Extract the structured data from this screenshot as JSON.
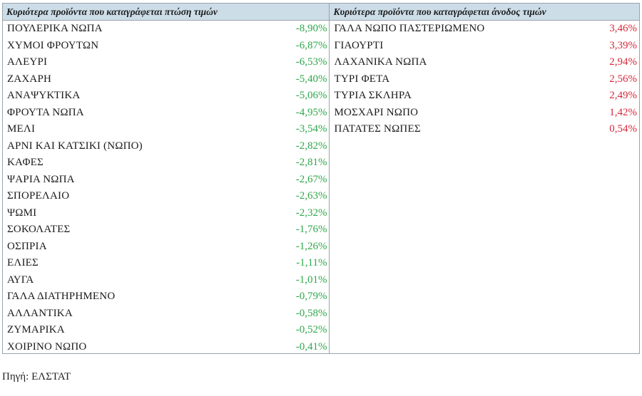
{
  "falling": {
    "header": "Κυριότερα προϊόντα που καταγράφεται πτώση τιμών",
    "rows": [
      {
        "name": "ΠΟΥΛΕΡΙΚΑ ΝΩΠΑ",
        "value": "-8,90%"
      },
      {
        "name": "ΧΥΜΟΙ ΦΡΟΥΤΩΝ",
        "value": "-6,87%"
      },
      {
        "name": "ΑΛΕΥΡΙ",
        "value": "-6,53%"
      },
      {
        "name": "ΖΑΧΑΡΗ",
        "value": "-5,40%"
      },
      {
        "name": "ΑΝΑΨΥΚΤΙΚΑ",
        "value": "-5,06%"
      },
      {
        "name": "ΦΡΟΥΤΑ ΝΩΠΑ",
        "value": "-4,95%"
      },
      {
        "name": "ΜΕΛΙ",
        "value": "-3,54%"
      },
      {
        "name": "ΑΡΝΙ ΚΑΙ ΚΑΤΣΙΚΙ (ΝΩΠΟ)",
        "value": "-2,82%"
      },
      {
        "name": "ΚΑΦΕΣ",
        "value": "-2,81%"
      },
      {
        "name": "ΨΑΡΙΑ ΝΩΠΑ",
        "value": "-2,67%"
      },
      {
        "name": "ΣΠΟΡΕΛΑΙΟ",
        "value": "-2,63%"
      },
      {
        "name": "ΨΩΜΙ",
        "value": "-2,32%"
      },
      {
        "name": "ΣΟΚΟΛΑΤΕΣ",
        "value": "-1,76%"
      },
      {
        "name": "ΟΣΠΡΙΑ",
        "value": "-1,26%"
      },
      {
        "name": "ΕΛΙΕΣ",
        "value": "-1,11%"
      },
      {
        "name": "ΑΥΓΑ",
        "value": "-1,01%"
      },
      {
        "name": "ΓΑΛΑ ΔΙΑΤΗΡΗΜΕΝΟ",
        "value": "-0,79%"
      },
      {
        "name": "ΑΛΛΑΝΤΙΚΑ",
        "value": "-0,58%"
      },
      {
        "name": "ΖΥΜΑΡΙΚΑ",
        "value": "-0,52%"
      },
      {
        "name": "ΧΟΙΡΙΝΟ ΝΩΠΟ",
        "value": "-0,41%"
      }
    ]
  },
  "rising": {
    "header": "Κυριότερα προϊόντα που καταγράφεται άνοδος τιμών",
    "rows": [
      {
        "name": "ΓΑΛΑ ΝΩΠΟ ΠΑΣΤΕΡΙΩΜΕΝΟ",
        "value": "3,46%"
      },
      {
        "name": "ΓΙΑΟΥΡΤΙ",
        "value": "3,39%"
      },
      {
        "name": "ΛΑΧΑΝΙΚΑ ΝΩΠΑ",
        "value": "2,94%"
      },
      {
        "name": "ΤΥΡΙ ΦΕΤΑ",
        "value": "2,56%"
      },
      {
        "name": "ΤΥΡΙΑ ΣΚΛΗΡΑ",
        "value": "2,49%"
      },
      {
        "name": "ΜΟΣΧΑΡΙ ΝΩΠΟ",
        "value": "1,42%"
      },
      {
        "name": "ΠΑΤΑΤΕΣ ΝΩΠΕΣ",
        "value": "0,54%"
      }
    ]
  },
  "source": "Πηγή: ΕΛΣΤΑΤ",
  "colors": {
    "header_bg": "#ccdde8",
    "negative": "#2ea84a",
    "positive": "#d6283a",
    "border": "#9aa3ab"
  }
}
